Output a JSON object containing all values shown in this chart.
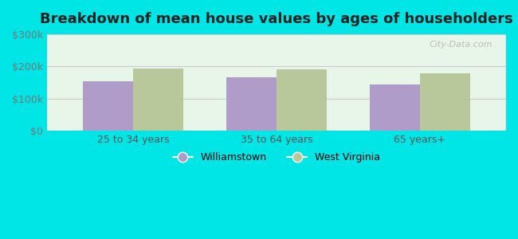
{
  "title": "Breakdown of mean house values by ages of householders",
  "categories": [
    "25 to 34 years",
    "35 to 64 years",
    "65 years+"
  ],
  "series": [
    {
      "label": "Williamstown",
      "values": [
        155000,
        165000,
        145000
      ],
      "color": "#b09cc8"
    },
    {
      "label": "West Virginia",
      "values": [
        193000,
        191000,
        178000
      ],
      "color": "#b8c89a"
    }
  ],
  "ylim": [
    0,
    300000
  ],
  "yticks": [
    0,
    100000,
    200000,
    300000
  ],
  "ytick_labels": [
    "$0",
    "$100k",
    "$200k",
    "$300k"
  ],
  "bar_width": 0.35,
  "figure_bg": "#00e5e5",
  "plot_bg": "#e8f5e9",
  "grid_color": "#cccccc",
  "title_fontsize": 13,
  "watermark": "City-Data.com"
}
